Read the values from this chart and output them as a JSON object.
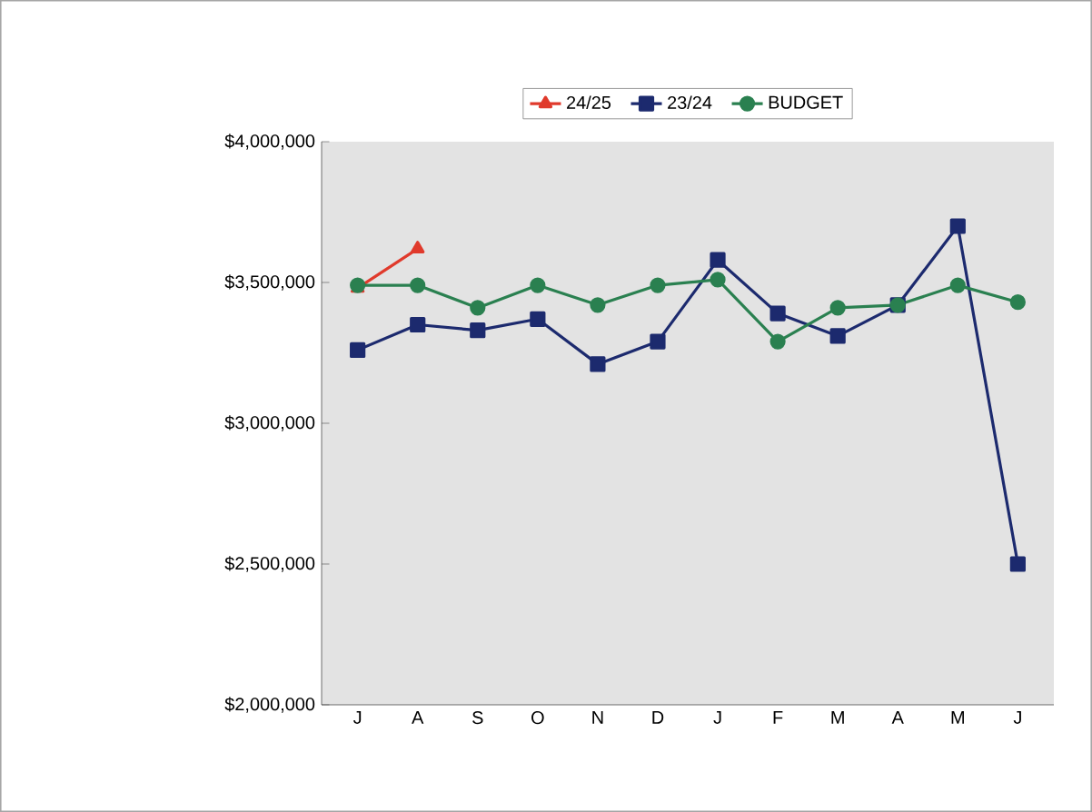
{
  "chart_data": {
    "type": "line",
    "categories": [
      "J",
      "A",
      "S",
      "O",
      "N",
      "D",
      "J",
      "F",
      "M",
      "A",
      "M",
      "J"
    ],
    "series": [
      {
        "name": "24/25",
        "color": "#e03a2c",
        "marker": "triangle",
        "values": [
          3480000,
          3620000,
          null,
          null,
          null,
          null,
          null,
          null,
          null,
          null,
          null,
          null
        ]
      },
      {
        "name": "23/24",
        "color": "#1c2a6e",
        "marker": "square",
        "values": [
          3260000,
          3350000,
          3330000,
          3370000,
          3210000,
          3290000,
          3580000,
          3390000,
          3310000,
          3420000,
          3700000,
          2500000
        ]
      },
      {
        "name": "BUDGET",
        "color": "#2a8050",
        "marker": "circle",
        "values": [
          3490000,
          3490000,
          3410000,
          3490000,
          3420000,
          3490000,
          3510000,
          3290000,
          3410000,
          3420000,
          3490000,
          3430000
        ]
      }
    ],
    "ylim": [
      2000000,
      4000000
    ],
    "yticks": [
      {
        "value": 2000000,
        "label": "$2,000,000"
      },
      {
        "value": 2500000,
        "label": "$2,500,000"
      },
      {
        "value": 3000000,
        "label": "$3,000,000"
      },
      {
        "value": 3500000,
        "label": "$3,500,000"
      },
      {
        "value": 4000000,
        "label": "$4,000,000"
      }
    ],
    "legend": "top",
    "grid": false
  }
}
